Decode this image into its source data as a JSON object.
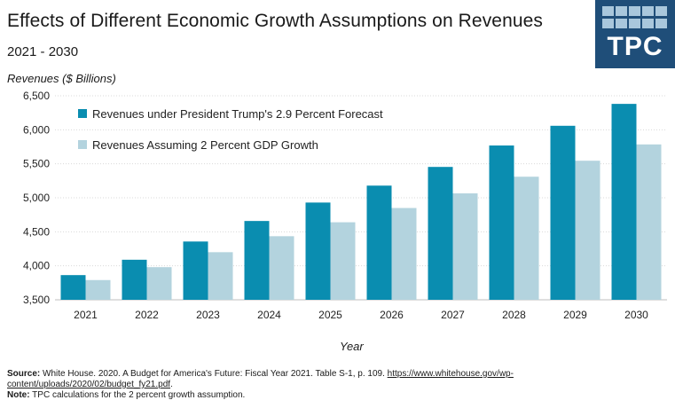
{
  "header": {
    "title": "Effects of Different  Economic Growth Assumptions  on Revenues",
    "subtitle": "2021 - 2030"
  },
  "logo": {
    "text": "TPC",
    "colors": {
      "background": "#1f4e79",
      "squares": "#a9c7dc"
    }
  },
  "chart_data": {
    "type": "bar",
    "ylabel": "Revenues ($ Billions)",
    "xlabel": "Year",
    "ylim": [
      3500,
      6500
    ],
    "yticks": [
      "3,500",
      "4,000",
      "4,500",
      "5,000",
      "5,500",
      "6,000",
      "6,500"
    ],
    "ytick_values": [
      3500,
      4000,
      4500,
      5000,
      5500,
      6000,
      6500
    ],
    "grid": true,
    "legend_position": "top-left",
    "categories": [
      "2021",
      "2022",
      "2023",
      "2024",
      "2025",
      "2026",
      "2027",
      "2028",
      "2029",
      "2030"
    ],
    "series": [
      {
        "name": "Revenues under President Trump's 2.9 Percent Forecast",
        "color": "#0a8db0",
        "values": [
          3863,
          4089,
          4357,
          4659,
          4930,
          5179,
          5454,
          5769,
          6059,
          6381
        ]
      },
      {
        "name": "Revenues Assuming 2 Percent GDP Growth",
        "color": "#b3d3de",
        "values": [
          3790,
          3980,
          4200,
          4435,
          4640,
          4850,
          5065,
          5310,
          5545,
          5785
        ]
      }
    ]
  },
  "footer": {
    "source_label": "Source:",
    "source_text": " White House. 2020.  A Budget for America's  Future: Fiscal Year 2021. Table S-1, p. 109.  ",
    "source_link_1": "https://www.whitehouse.gov/wp-",
    "source_link_2": "content/uploads/2020/02/budget_fy21.pdf",
    "source_end": ".",
    "note_label": "Note:",
    "note_text": " TPC calculations for the 2 percent  growth assumption."
  }
}
